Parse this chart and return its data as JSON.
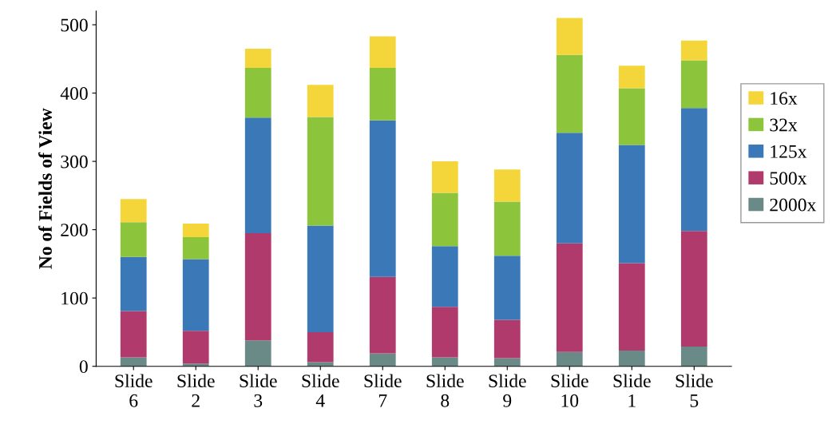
{
  "chart_data": {
    "type": "bar",
    "stacked": true,
    "ylabel": "No of Fields of View",
    "categories": [
      "Slide\n6",
      "Slide\n2",
      "Slide\n3",
      "Slide\n4",
      "Slide\n7",
      "Slide\n8",
      "Slide\n9",
      "Slide\n10",
      "Slide\n1",
      "Slide\n5"
    ],
    "series": [
      {
        "name": "2000x",
        "color": "#6a8a88",
        "values": [
          13,
          4,
          38,
          6,
          19,
          13,
          12,
          21,
          23,
          29
        ]
      },
      {
        "name": "500x",
        "color": "#b03a6c",
        "values": [
          68,
          48,
          157,
          44,
          112,
          74,
          56,
          159,
          128,
          169
        ]
      },
      {
        "name": "125x",
        "color": "#3a78b8",
        "values": [
          79,
          105,
          169,
          156,
          229,
          89,
          94,
          162,
          173,
          180
        ]
      },
      {
        "name": "32x",
        "color": "#8cc43c",
        "values": [
          51,
          32,
          73,
          159,
          77,
          78,
          79,
          114,
          83,
          70
        ]
      },
      {
        "name": "16x",
        "color": "#f5d63a",
        "values": [
          34,
          20,
          28,
          47,
          46,
          46,
          47,
          54,
          33,
          29
        ]
      }
    ],
    "ylim": [
      0,
      520
    ],
    "yticks": [
      0,
      100,
      200,
      300,
      400,
      500
    ],
    "legend": "right"
  }
}
